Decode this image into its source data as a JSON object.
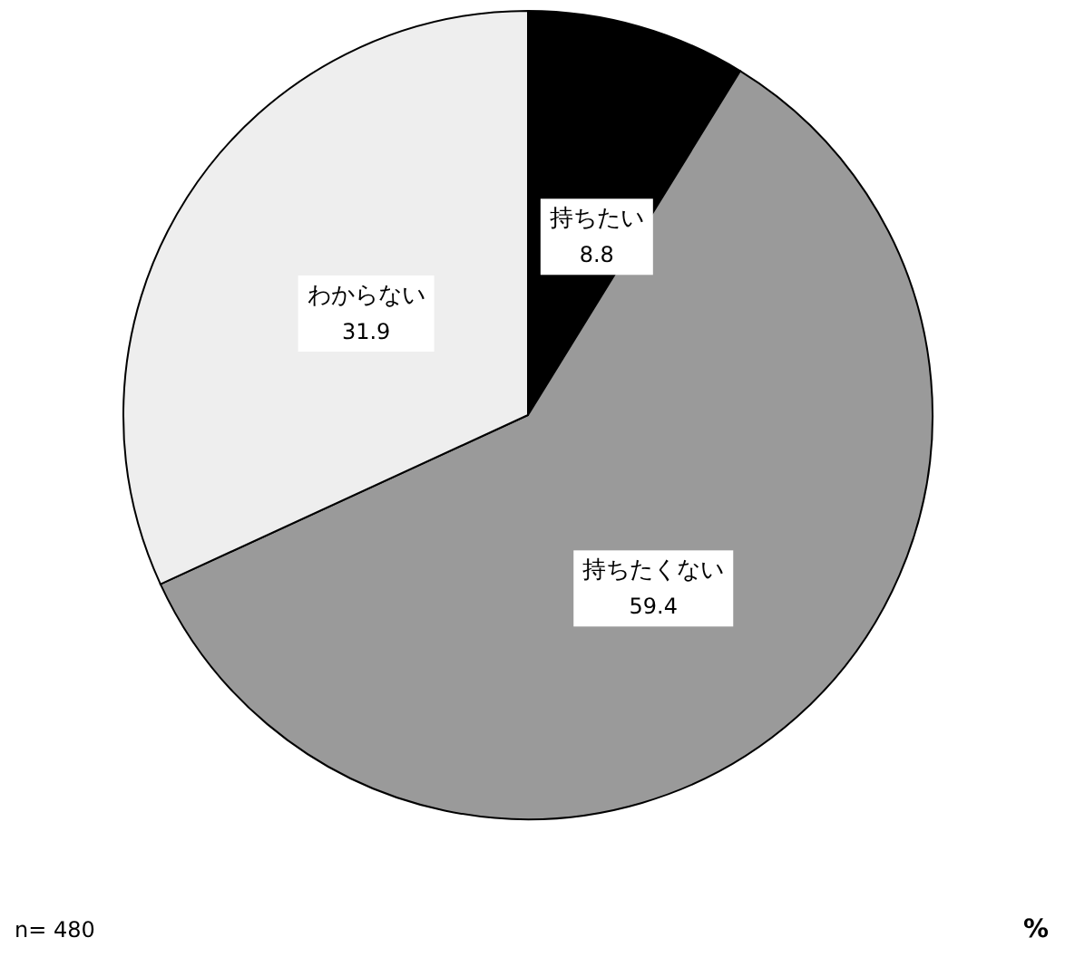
{
  "chart_data": {
    "type": "pie",
    "categories": [
      "持ちたい",
      "持ちたくない",
      "わからない"
    ],
    "values": [
      8.8,
      59.4,
      31.9
    ],
    "colors": [
      "#000000",
      "#9a9a9a",
      "#eeeeee"
    ],
    "data_labels": true,
    "annotations": [
      "n= 480",
      "%"
    ]
  }
}
